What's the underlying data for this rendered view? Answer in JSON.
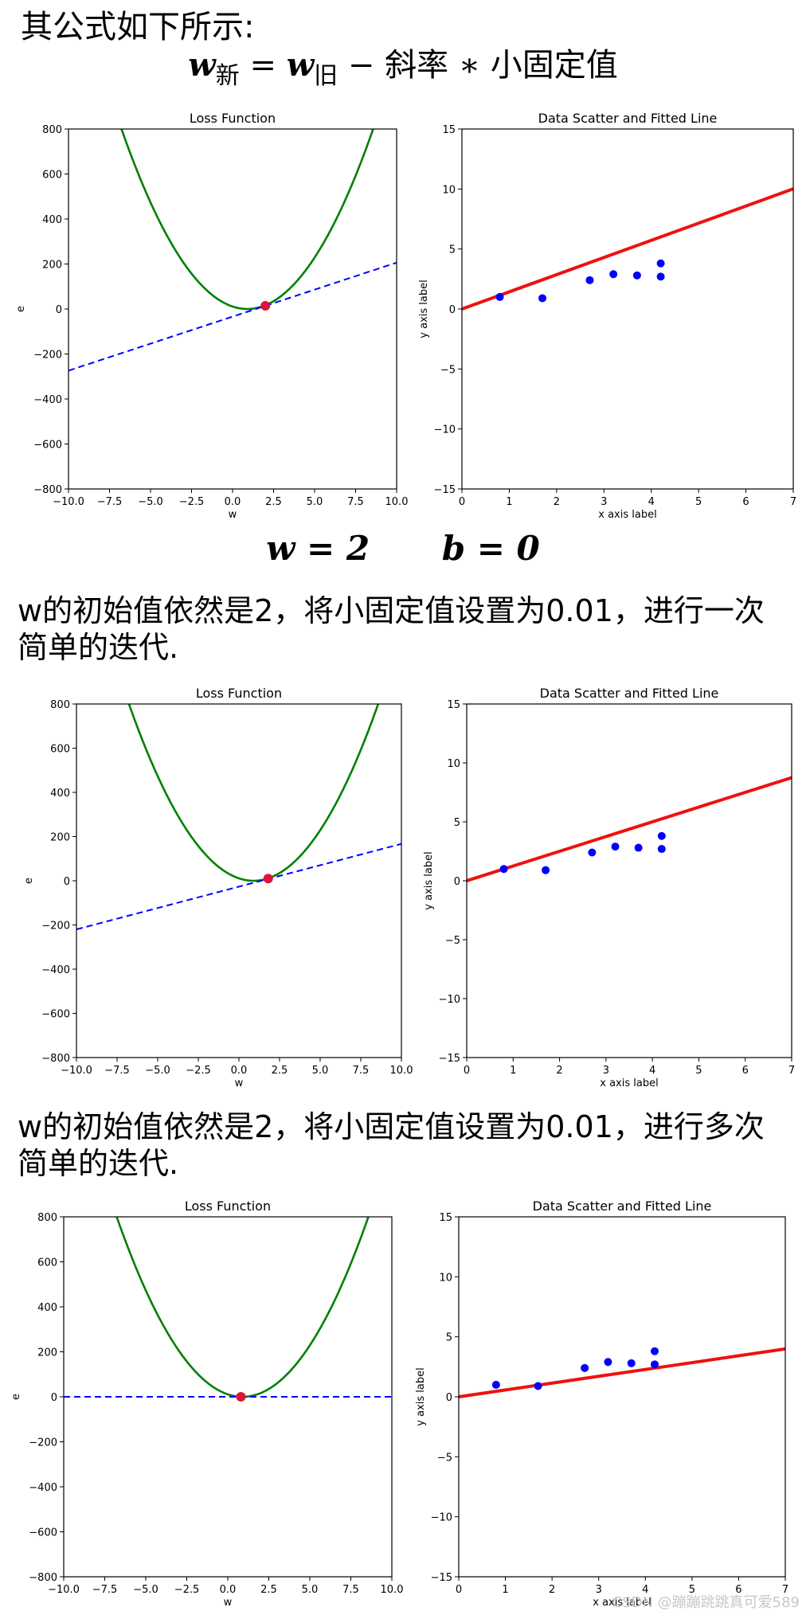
{
  "heading": "其公式如下所示:",
  "formula": {
    "w": "w",
    "new_sub": "新",
    "equals": "=",
    "old_sub": "旧",
    "minus": "−",
    "slope": "斜率",
    "times": "∗",
    "step": "小固定值"
  },
  "params": {
    "w": "w = 2",
    "b": "b = 0"
  },
  "para1": "w的初始值依然是2，将小固定值设置为0.01，进行一次简单的迭代.",
  "para2": "w的初始值依然是2，将小固定值设置为0.01，进行多次简单的迭代.",
  "watermark": "CSDN @蹦蹦跳跳真可爱589",
  "colors": {
    "curve": "#008000",
    "tangent": "#0000ff",
    "point": "#dc143c",
    "scatter": "#0000ff",
    "fit": "#ee1111"
  },
  "chart_data": [
    {
      "type": "line",
      "title": "Loss Function",
      "xlabel": "w",
      "ylabel": "e",
      "xlim": [
        -10,
        10
      ],
      "ylim": [
        -800,
        800
      ],
      "xticks": [
        -10,
        -7.5,
        -5,
        -2.5,
        0,
        2.5,
        5,
        7.5,
        10
      ],
      "xtick_labels": [
        "−10.0",
        "−7.5",
        "−5.0",
        "−2.5",
        "0.0",
        "2.5",
        "5.0",
        "7.5",
        "10.0"
      ],
      "yticks": [
        -800,
        -600,
        -400,
        -200,
        0,
        200,
        400,
        600,
        800
      ],
      "ytick_labels": [
        "−800",
        "−600",
        "−400",
        "−200",
        "0",
        "200",
        "400",
        "600",
        "800"
      ],
      "series": [
        {
          "kind": "curve",
          "formula": "e = 13.6*(w-0.9)^2",
          "a": 13.6,
          "h": 0.9
        },
        {
          "kind": "tangent",
          "points": [
            [
              -10,
              -274
            ],
            [
              10,
              206
            ]
          ]
        },
        {
          "kind": "point",
          "x": 2.0,
          "y": 14
        }
      ]
    },
    {
      "type": "scatter",
      "title": "Data Scatter and Fitted Line",
      "xlabel": "x axis label",
      "ylabel": "y axis label",
      "xlim": [
        0,
        7
      ],
      "ylim": [
        -15,
        15
      ],
      "xticks": [
        0,
        1,
        2,
        3,
        4,
        5,
        6,
        7
      ],
      "xtick_labels": [
        "0",
        "1",
        "2",
        "3",
        "4",
        "5",
        "6",
        "7"
      ],
      "yticks": [
        -15,
        -10,
        -5,
        0,
        5,
        10,
        15
      ],
      "ytick_labels": [
        "−15",
        "−10",
        "−5",
        "0",
        "5",
        "10",
        "15"
      ],
      "points": [
        [
          0.8,
          1.0
        ],
        [
          1.7,
          0.9
        ],
        [
          2.7,
          2.4
        ],
        [
          3.2,
          2.9
        ],
        [
          3.7,
          2.8
        ],
        [
          4.2,
          3.8
        ],
        [
          4.2,
          2.7
        ]
      ],
      "fit_line": {
        "slope": 1.43,
        "intercept": 0
      }
    },
    {
      "type": "line",
      "title": "Loss Function",
      "xlabel": "w",
      "ylabel": "e",
      "xlim": [
        -10,
        10
      ],
      "ylim": [
        -800,
        800
      ],
      "xticks": [
        -10,
        -7.5,
        -5,
        -2.5,
        0,
        2.5,
        5,
        7.5,
        10
      ],
      "xtick_labels": [
        "−10.0",
        "−7.5",
        "−5.0",
        "−2.5",
        "0.0",
        "2.5",
        "5.0",
        "7.5",
        "10.0"
      ],
      "yticks": [
        -800,
        -600,
        -400,
        -200,
        0,
        200,
        400,
        600,
        800
      ],
      "ytick_labels": [
        "−800",
        "−600",
        "−400",
        "−200",
        "0",
        "200",
        "400",
        "600",
        "800"
      ],
      "series": [
        {
          "kind": "curve",
          "formula": "e = 13.6*(w-0.9)^2",
          "a": 13.6,
          "h": 0.9
        },
        {
          "kind": "tangent",
          "points": [
            [
              -10,
              -220
            ],
            [
              10,
              167
            ]
          ]
        },
        {
          "kind": "point",
          "x": 1.8,
          "y": 10
        }
      ]
    },
    {
      "type": "scatter",
      "title": "Data Scatter and Fitted Line",
      "xlabel": "x axis label",
      "ylabel": "y axis label",
      "xlim": [
        0,
        7
      ],
      "ylim": [
        -15,
        15
      ],
      "xticks": [
        0,
        1,
        2,
        3,
        4,
        5,
        6,
        7
      ],
      "xtick_labels": [
        "0",
        "1",
        "2",
        "3",
        "4",
        "5",
        "6",
        "7"
      ],
      "yticks": [
        -15,
        -10,
        -5,
        0,
        5,
        10,
        15
      ],
      "ytick_labels": [
        "−15",
        "−10",
        "−5",
        "0",
        "5",
        "10",
        "15"
      ],
      "points": [
        [
          0.8,
          1.0
        ],
        [
          1.7,
          0.9
        ],
        [
          2.7,
          2.4
        ],
        [
          3.2,
          2.9
        ],
        [
          3.7,
          2.8
        ],
        [
          4.2,
          3.8
        ],
        [
          4.2,
          2.7
        ]
      ],
      "fit_line": {
        "slope": 1.25,
        "intercept": 0
      }
    },
    {
      "type": "line",
      "title": "Loss Function",
      "xlabel": "w",
      "ylabel": "e",
      "xlim": [
        -10,
        10
      ],
      "ylim": [
        -800,
        800
      ],
      "xticks": [
        -10,
        -7.5,
        -5,
        -2.5,
        0,
        2.5,
        5,
        7.5,
        10
      ],
      "xtick_labels": [
        "−10.0",
        "−7.5",
        "−5.0",
        "−2.5",
        "0.0",
        "2.5",
        "5.0",
        "7.5",
        "10.0"
      ],
      "yticks": [
        -800,
        -600,
        -400,
        -200,
        0,
        200,
        400,
        600,
        800
      ],
      "ytick_labels": [
        "−800",
        "−600",
        "−400",
        "−200",
        "0",
        "200",
        "400",
        "600",
        "800"
      ],
      "series": [
        {
          "kind": "curve",
          "formula": "e = 13.6*(w-0.9)^2",
          "a": 13.6,
          "h": 0.9
        },
        {
          "kind": "tangent",
          "points": [
            [
              -10,
              0
            ],
            [
              10,
              0
            ]
          ]
        },
        {
          "kind": "point",
          "x": 0.8,
          "y": 0
        }
      ]
    },
    {
      "type": "scatter",
      "title": "Data Scatter and Fitted Line",
      "xlabel": "x axis label",
      "ylabel": "y axis label",
      "xlim": [
        0,
        7
      ],
      "ylim": [
        -15,
        15
      ],
      "xticks": [
        0,
        1,
        2,
        3,
        4,
        5,
        6,
        7
      ],
      "xtick_labels": [
        "0",
        "1",
        "2",
        "3",
        "4",
        "5",
        "6",
        "7"
      ],
      "yticks": [
        -15,
        -10,
        -5,
        0,
        5,
        10,
        15
      ],
      "ytick_labels": [
        "−15",
        "−10",
        "−5",
        "0",
        "5",
        "10",
        "15"
      ],
      "points": [
        [
          0.8,
          1.0
        ],
        [
          1.7,
          0.9
        ],
        [
          2.7,
          2.4
        ],
        [
          3.2,
          2.9
        ],
        [
          3.7,
          2.8
        ],
        [
          4.2,
          3.8
        ],
        [
          4.2,
          2.7
        ]
      ],
      "fit_line": {
        "slope": 0.57,
        "intercept": 0
      }
    }
  ]
}
